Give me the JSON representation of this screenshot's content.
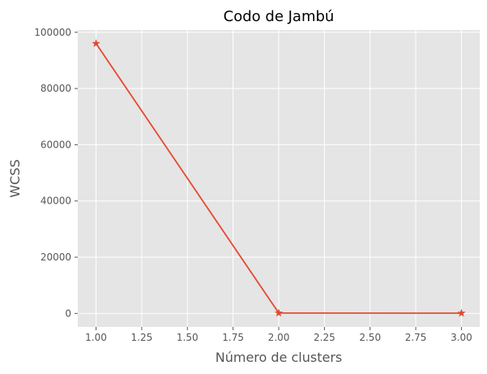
{
  "chart_data": {
    "type": "line",
    "title": "Codo de Jambú",
    "xlabel": "Número de clusters",
    "ylabel": "WCSS",
    "x": [
      1,
      2,
      3
    ],
    "series": [
      {
        "values": [
          96000,
          150,
          100
        ],
        "color": "#E24A33",
        "marker": "star"
      }
    ],
    "xlim": [
      0.9,
      3.1
    ],
    "ylim": [
      -4800,
      100800
    ],
    "xticks": [
      1.0,
      1.25,
      1.5,
      1.75,
      2.0,
      2.25,
      2.5,
      2.75,
      3.0
    ],
    "xtick_labels": [
      "1.00",
      "1.25",
      "1.50",
      "1.75",
      "2.00",
      "2.25",
      "2.50",
      "2.75",
      "3.00"
    ],
    "yticks": [
      0,
      20000,
      40000,
      60000,
      80000,
      100000
    ],
    "ytick_labels": [
      "0",
      "20000",
      "40000",
      "60000",
      "80000",
      "100000"
    ],
    "grid": true,
    "background": "#E5E5E5",
    "grid_color": "#FFFFFF"
  }
}
